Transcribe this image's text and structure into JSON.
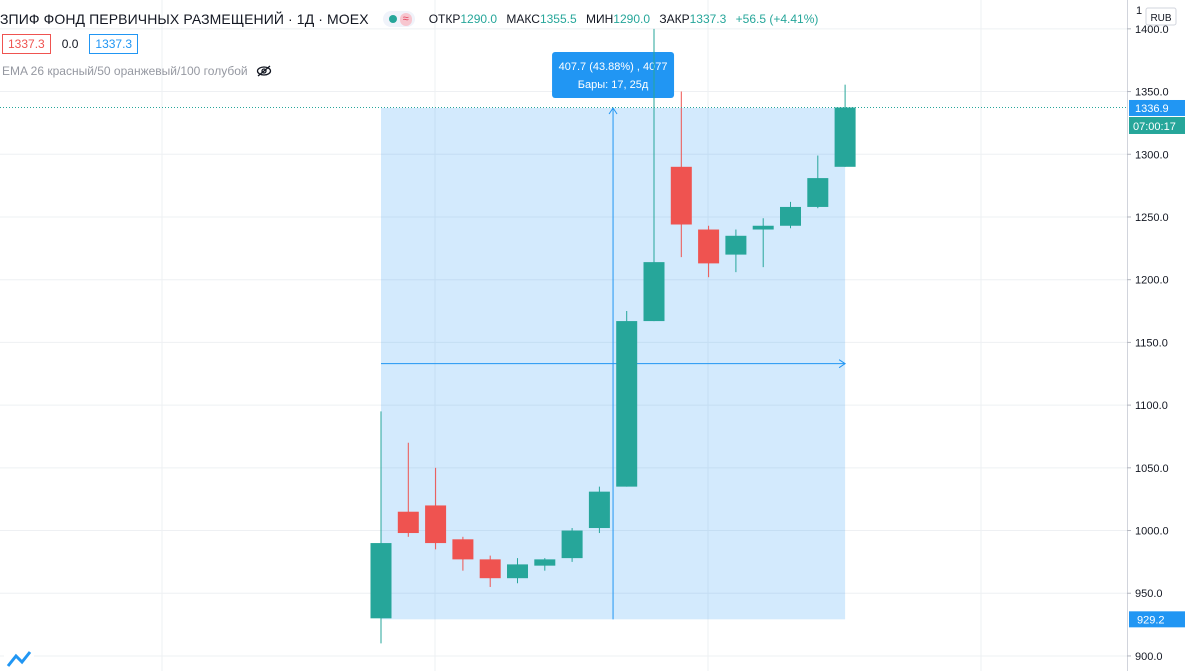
{
  "header": {
    "title": "ЗПИФ ФОНД ПЕРВИЧНЫХ РАЗМЕЩЕНИЙ · 1Д · MOEX",
    "symbol_badge": "≈",
    "ohlc": [
      {
        "label": "ОТКР",
        "value": "1290.0"
      },
      {
        "label": "МАКС",
        "value": "1355.5"
      },
      {
        "label": "МИН",
        "value": "1290.0"
      },
      {
        "label": "ЗАКР",
        "value": "1337.3"
      }
    ],
    "change": "+56.5 (+4.41%)"
  },
  "trade": {
    "sell": "1337.3",
    "spread": "0.0",
    "buy": "1337.3"
  },
  "indicator": {
    "label": "EMA 26 красный/50 оранжевый/100 голубой",
    "icon": "eye-off-icon"
  },
  "price_axis": {
    "currency": "RUB",
    "countdown": "07:00:17"
  },
  "measure": {
    "line1": "407.7 (43.88%) , 4077",
    "line2": "Бары: 17, 25д"
  },
  "colors": {
    "up": "#26a69a",
    "down": "#ef5350",
    "measure": "#2196f3",
    "axis_text": "#131722"
  },
  "chart_data": {
    "type": "candlestick",
    "ylim": [
      888,
      1423
    ],
    "yticks": [
      900,
      950,
      1000,
      1050,
      1100,
      1150,
      1200,
      1250,
      1300,
      1350,
      1400
    ],
    "ytick_labels": [
      "900.0",
      "950.0",
      "1000.0",
      "1050.0",
      "1100.0",
      "1150.0",
      "1200.0",
      "1250.0",
      "1300.0",
      "1350.0",
      "1400.0"
    ],
    "candles": [
      {
        "o": 930,
        "h": 1095,
        "l": 910,
        "c": 990
      },
      {
        "o": 1015,
        "h": 1070,
        "l": 995,
        "c": 998
      },
      {
        "o": 1020,
        "h": 1050,
        "l": 985,
        "c": 990
      },
      {
        "o": 993,
        "h": 995,
        "l": 968,
        "c": 977
      },
      {
        "o": 977,
        "h": 980,
        "l": 955,
        "c": 962
      },
      {
        "o": 962,
        "h": 978,
        "l": 958,
        "c": 973
      },
      {
        "o": 972,
        "h": 978,
        "l": 968,
        "c": 977
      },
      {
        "o": 978,
        "h": 1002,
        "l": 975,
        "c": 1000
      },
      {
        "o": 1002,
        "h": 1035,
        "l": 998,
        "c": 1031
      },
      {
        "o": 1035,
        "h": 1175,
        "l": 1035,
        "c": 1167
      },
      {
        "o": 1167,
        "h": 1400,
        "l": 1167,
        "c": 1214
      },
      {
        "o": 1290,
        "h": 1350,
        "l": 1218,
        "c": 1244
      },
      {
        "o": 1240,
        "h": 1243,
        "l": 1202,
        "c": 1213
      },
      {
        "o": 1220,
        "h": 1240,
        "l": 1206,
        "c": 1235
      },
      {
        "o": 1240,
        "h": 1249,
        "l": 1210,
        "c": 1243
      },
      {
        "o": 1243,
        "h": 1262,
        "l": 1241,
        "c": 1258
      },
      {
        "o": 1258,
        "h": 1299,
        "l": 1257,
        "c": 1281
      },
      {
        "o": 1290,
        "h": 1355.5,
        "l": 1290,
        "c": 1337.3
      }
    ],
    "measure_range": {
      "from_index": 0,
      "to_index": 17,
      "low": 929.2,
      "high": 1336.9
    },
    "current_price_label": "1336.9",
    "low_price_label": "929.2",
    "top_partial_label": "1"
  }
}
